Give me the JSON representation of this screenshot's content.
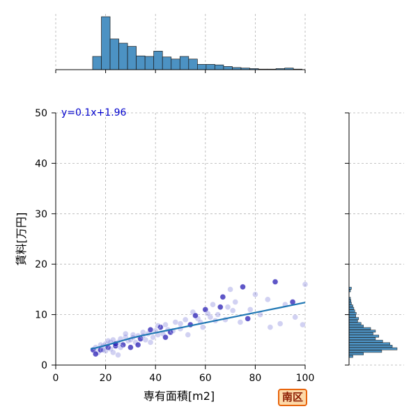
{
  "badge": "南区",
  "chart_data": [
    {
      "panel": "main",
      "type": "scatter",
      "xlabel": "専有面積[m2]",
      "ylabel": "賃料[万円]",
      "xlim": [
        0,
        100
      ],
      "ylim": [
        0,
        50
      ],
      "xticks": [
        "0",
        "20",
        "40",
        "60",
        "80",
        "100"
      ],
      "yticks": [
        "0",
        "10",
        "20",
        "30",
        "40",
        "50"
      ],
      "grid": true,
      "annotation": "y=0.1x+1.96",
      "fit_line": {
        "x": [
          14,
          16,
          20,
          25,
          30,
          35,
          40,
          45,
          50,
          55,
          60,
          65,
          70,
          75,
          80,
          85,
          90,
          95,
          100
        ],
        "y": [
          3.2,
          3.4,
          3.9,
          4.6,
          5.3,
          5.9,
          6.4,
          6.9,
          7.4,
          7.9,
          8.4,
          8.9,
          9.4,
          9.9,
          10.4,
          10.9,
          11.4,
          11.9,
          12.4
        ]
      },
      "points_approx": {
        "x": [
          15,
          16,
          17,
          18,
          18,
          19,
          20,
          20,
          21,
          22,
          22,
          23,
          24,
          25,
          25,
          26,
          27,
          28,
          29,
          30,
          30,
          31,
          32,
          33,
          34,
          35,
          36,
          37,
          38,
          39,
          40,
          41,
          42,
          43,
          44,
          45,
          46,
          48,
          50,
          52,
          54,
          55,
          57,
          58,
          60,
          62,
          63,
          65,
          67,
          69,
          70,
          72,
          75,
          78,
          80,
          85,
          88,
          92,
          96,
          100,
          16,
          19,
          21,
          23,
          24,
          26,
          28,
          31,
          33,
          35,
          38,
          41,
          44,
          47,
          50,
          53,
          56,
          59,
          61,
          64,
          66,
          68,
          71,
          74,
          77,
          82,
          86,
          90,
          95,
          99
        ],
        "y": [
          3.0,
          3.5,
          2.5,
          4.0,
          3.0,
          3.8,
          4.2,
          2.8,
          3.5,
          4.5,
          3.2,
          5.0,
          3.8,
          4.5,
          2.0,
          5.2,
          4.0,
          5.5,
          4.8,
          5.0,
          3.5,
          6.0,
          4.5,
          5.8,
          5.2,
          6.5,
          5.0,
          6.2,
          7.0,
          5.5,
          6.8,
          6.0,
          7.5,
          6.2,
          8.0,
          7.0,
          6.5,
          8.5,
          7.2,
          9.0,
          8.0,
          10.5,
          9.2,
          8.5,
          11.0,
          9.5,
          12.0,
          10.0,
          13.5,
          11.5,
          15.0,
          12.5,
          15.5,
          11.0,
          14.0,
          13.0,
          16.5,
          12.0,
          9.5,
          16.0,
          2.2,
          3.0,
          4.8,
          2.5,
          4.2,
          3.5,
          6.2,
          5.5,
          4.0,
          5.8,
          4.5,
          7.8,
          5.5,
          6.8,
          8.2,
          6.0,
          9.8,
          7.5,
          10.2,
          8.8,
          11.5,
          9.0,
          10.8,
          8.5,
          9.2,
          10.0,
          7.5,
          8.2,
          12.5,
          8.0
        ]
      }
    },
    {
      "panel": "top-marginal",
      "type": "bar",
      "description_axis": "専有面積 histogram",
      "bin_edges_start": 0,
      "bin_width": 3.5,
      "bins": [
        [
          14.8,
          0.25
        ],
        [
          18.3,
          1.0
        ],
        [
          21.8,
          0.58
        ],
        [
          25.3,
          0.5
        ],
        [
          28.8,
          0.44
        ],
        [
          32.3,
          0.26
        ],
        [
          35.8,
          0.25
        ],
        [
          39.3,
          0.35
        ],
        [
          42.8,
          0.24
        ],
        [
          46.3,
          0.2
        ],
        [
          49.8,
          0.25
        ],
        [
          53.3,
          0.2
        ],
        [
          56.8,
          0.1
        ],
        [
          60.3,
          0.1
        ],
        [
          63.8,
          0.09
        ],
        [
          67.3,
          0.06
        ],
        [
          70.8,
          0.04
        ],
        [
          74.3,
          0.03
        ],
        [
          77.8,
          0.02
        ],
        [
          81.3,
          0.01
        ],
        [
          84.8,
          0.01
        ],
        [
          88.3,
          0.02
        ],
        [
          91.8,
          0.03
        ],
        [
          95.3,
          0.01
        ]
      ]
    },
    {
      "panel": "right-marginal",
      "type": "bar",
      "orientation": "horizontal",
      "bin_height": 0.45,
      "bins": [
        [
          15.0,
          0.05
        ],
        [
          14.5,
          0.03
        ],
        [
          13.0,
          0.03
        ],
        [
          12.5,
          0.04
        ],
        [
          12.0,
          0.05
        ],
        [
          11.5,
          0.08
        ],
        [
          11.0,
          0.1
        ],
        [
          10.5,
          0.12
        ],
        [
          10.0,
          0.15
        ],
        [
          9.5,
          0.14
        ],
        [
          9.0,
          0.2
        ],
        [
          8.5,
          0.18
        ],
        [
          8.0,
          0.25
        ],
        [
          7.5,
          0.3
        ],
        [
          7.0,
          0.45
        ],
        [
          6.5,
          0.55
        ],
        [
          6.0,
          0.5
        ],
        [
          5.5,
          0.62
        ],
        [
          5.0,
          0.55
        ],
        [
          4.5,
          0.7
        ],
        [
          4.0,
          0.85
        ],
        [
          3.5,
          0.9
        ],
        [
          3.0,
          1.0
        ],
        [
          2.5,
          0.68
        ],
        [
          2.0,
          0.3
        ],
        [
          1.5,
          0.08
        ]
      ]
    }
  ]
}
